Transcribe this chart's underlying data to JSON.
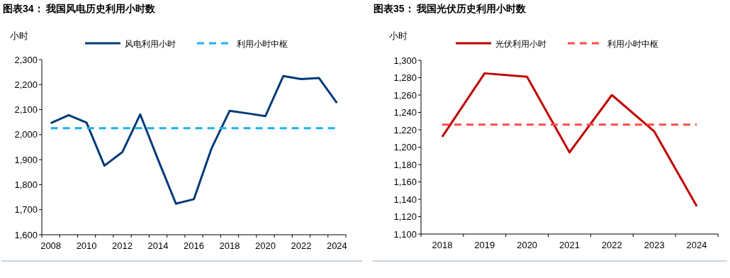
{
  "chart_data": [
    {
      "type": "line",
      "title": "图表34：  我国风电历史利用小时数",
      "ylabel": "小时",
      "legend": "top",
      "grid": false,
      "categories": [
        "2008",
        null,
        "2010",
        null,
        "2012",
        null,
        "2014",
        null,
        "2016",
        null,
        "2018",
        null,
        "2020",
        null,
        "2022",
        null,
        "2024"
      ],
      "series": [
        {
          "name": "风电利用小时",
          "color": "#003a78",
          "line_style": "solid",
          "values": [
            2046,
            2078,
            2048,
            1876,
            1930,
            2081,
            1900,
            1724,
            1742,
            1947,
            2095,
            2085,
            2074,
            2234,
            2222,
            2226,
            2127
          ]
        },
        {
          "name": "利用小时中枢",
          "color": "#1fb0ea",
          "line_style": "dashed",
          "values": [
            2026,
            2026,
            2026,
            2026,
            2026,
            2026,
            2026,
            2026,
            2026,
            2026,
            2026,
            2026,
            2026,
            2026,
            2026,
            2026,
            2026
          ]
        }
      ],
      "ylim": [
        1600,
        2300
      ],
      "yticks": [
        {
          "value": 1600,
          "label": "1,600"
        },
        {
          "value": 1700,
          "label": "1,700"
        },
        {
          "value": 1800,
          "label": "1,800"
        },
        {
          "value": 1900,
          "label": "1,900"
        },
        {
          "value": 2000,
          "label": "2,000"
        },
        {
          "value": 2100,
          "label": "2,100"
        },
        {
          "value": 2200,
          "label": "2,200"
        },
        {
          "value": 2300,
          "label": "2,300"
        }
      ]
    },
    {
      "type": "line",
      "title": "图表35：  我国光伏历史利用小时数",
      "ylabel": "小时",
      "legend": "top",
      "grid": false,
      "categories": [
        "2018",
        "2019",
        "2020",
        "2021",
        "2022",
        "2023",
        "2024"
      ],
      "series": [
        {
          "name": "光伏利用小时",
          "color": "#c00000",
          "line_style": "solid",
          "values": [
            1212,
            1285,
            1281,
            1194,
            1260,
            1218,
            1132
          ]
        },
        {
          "name": "利用小时中枢",
          "color": "#ff4b4b",
          "line_style": "dashed",
          "values": [
            1226,
            1226,
            1226,
            1226,
            1226,
            1226,
            1226
          ]
        }
      ],
      "ylim": [
        1100,
        1300
      ],
      "yticks": [
        {
          "value": 1100,
          "label": "1,100"
        },
        {
          "value": 1120,
          "label": "1,120"
        },
        {
          "value": 1140,
          "label": "1,140"
        },
        {
          "value": 1160,
          "label": "1,160"
        },
        {
          "value": 1180,
          "label": "1,180"
        },
        {
          "value": 1200,
          "label": "1,200"
        },
        {
          "value": 1220,
          "label": "1,220"
        },
        {
          "value": 1240,
          "label": "1,240"
        },
        {
          "value": 1260,
          "label": "1,260"
        },
        {
          "value": 1280,
          "label": "1,280"
        },
        {
          "value": 1300,
          "label": "1,300"
        }
      ]
    }
  ]
}
